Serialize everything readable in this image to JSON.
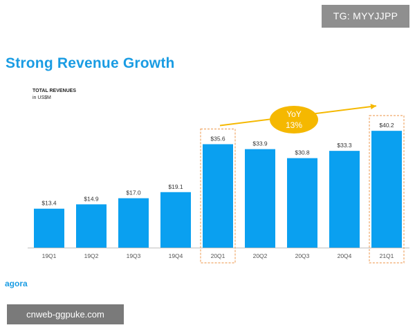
{
  "watermark_top": "TG: MYYJJPP",
  "slide_title": "Strong Revenue Growth",
  "logo": "agora",
  "watermark_bottom": "cnweb-ggpuke.com",
  "chart_data": {
    "type": "bar",
    "title": "TOTAL REVENUES",
    "subtitle": "in US$M",
    "categories": [
      "19Q1",
      "19Q2",
      "19Q3",
      "19Q4",
      "20Q1",
      "20Q2",
      "20Q3",
      "20Q4",
      "21Q1"
    ],
    "values": [
      13.4,
      14.9,
      17.0,
      19.1,
      35.6,
      33.9,
      30.8,
      33.3,
      40.2
    ],
    "value_labels": [
      "$13.4",
      "$14.9",
      "$17.0",
      "$19.1",
      "$35.6",
      "$33.9",
      "$30.8",
      "$33.3",
      "$40.2"
    ],
    "highlighted": [
      "20Q1",
      "21Q1"
    ],
    "annotation": {
      "line1": "YoY",
      "line2": "13%",
      "from": "20Q1",
      "to": "21Q1"
    },
    "ylim": [
      0,
      45
    ],
    "colors": {
      "bar": "#0aa0f0",
      "highlight_box": "#f0a868",
      "annotation": "#f5b800",
      "axis": "#bfbfbf",
      "label": "#333333",
      "tick": "#555555"
    }
  }
}
